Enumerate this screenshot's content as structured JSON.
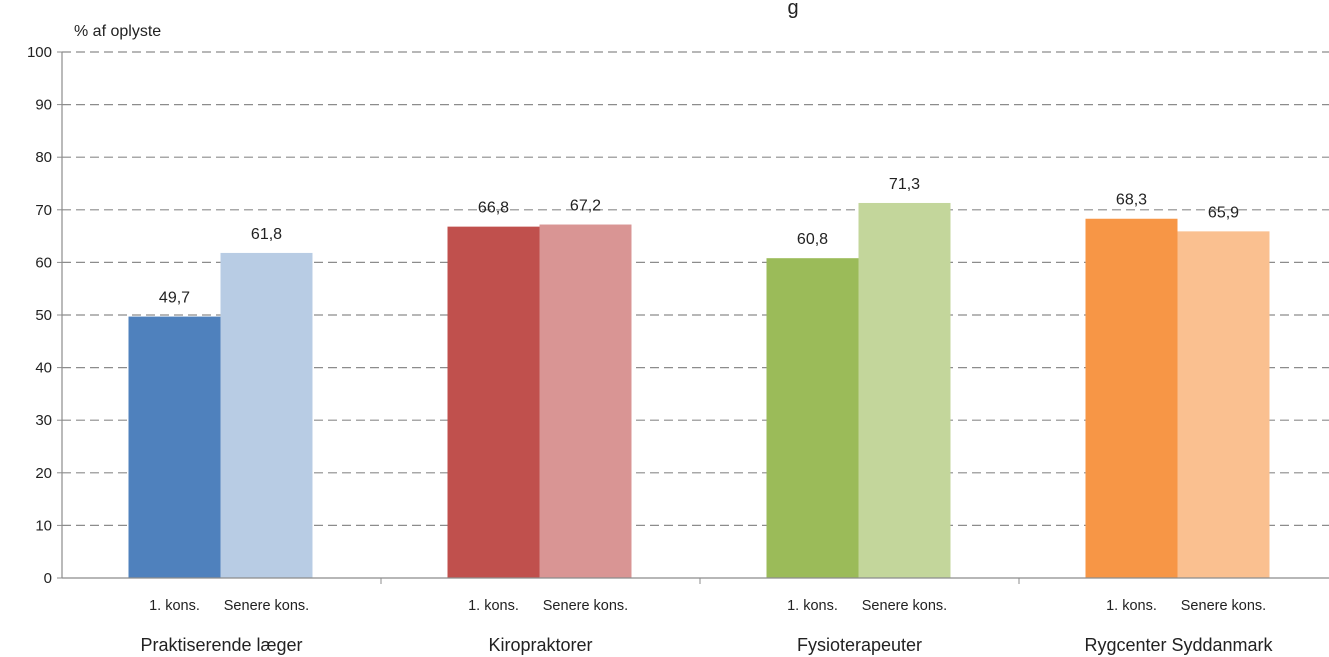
{
  "chart_data": {
    "type": "bar",
    "title_fragment": "g",
    "ylabel": "% af  oplyste",
    "ylim": [
      0,
      100
    ],
    "yticks": [
      0,
      10,
      20,
      30,
      40,
      50,
      60,
      70,
      80,
      90,
      100
    ],
    "grid": true,
    "groups": [
      {
        "label": "Praktiserende læger",
        "bars": [
          {
            "label": "1. kons.",
            "value": 49.7,
            "value_text": "49,7",
            "color": "#4f81bd"
          },
          {
            "label": "Senere kons.",
            "value": 61.8,
            "value_text": "61,8",
            "color": "#b8cce4"
          }
        ]
      },
      {
        "label": "Kiropraktorer",
        "bars": [
          {
            "label": "1. kons.",
            "value": 66.8,
            "value_text": "66,8",
            "color": "#c0504d"
          },
          {
            "label": "Senere kons.",
            "value": 67.2,
            "value_text": "67,2",
            "color": "#d99594"
          }
        ]
      },
      {
        "label": "Fysioterapeuter",
        "bars": [
          {
            "label": "1. kons.",
            "value": 60.8,
            "value_text": "60,8",
            "color": "#9bbb59"
          },
          {
            "label": "Senere kons.",
            "value": 71.3,
            "value_text": "71,3",
            "color": "#c3d69b"
          }
        ]
      },
      {
        "label": "Rygcenter Syddanmark",
        "bars": [
          {
            "label": "1. kons.",
            "value": 68.3,
            "value_text": "68,3",
            "color": "#f79646"
          },
          {
            "label": "Senere kons.",
            "value": 65.9,
            "value_text": "65,9",
            "color": "#fac090"
          }
        ]
      }
    ]
  }
}
